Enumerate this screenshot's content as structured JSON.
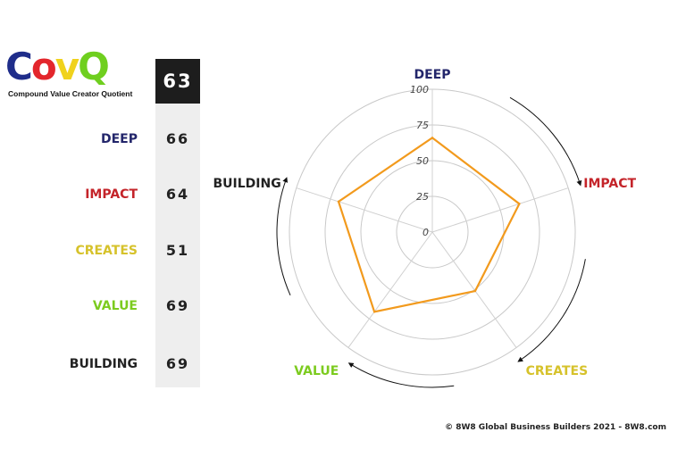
{
  "logo": {
    "letters": [
      {
        "char": "C",
        "color": "#1f2d8a"
      },
      {
        "char": "o",
        "color": "#e3262c"
      },
      {
        "char": "v",
        "color": "#f0d21c"
      },
      {
        "char": "Q",
        "color": "#6fcf1f"
      }
    ],
    "subtitle": "Compound Value Creator Quotient"
  },
  "total_score": "63",
  "rows": [
    {
      "label": "DEEP",
      "score": "66",
      "color": "#23266b"
    },
    {
      "label": "IMPACT",
      "score": "64",
      "color": "#c4242a"
    },
    {
      "label": "CREATES",
      "score": "51",
      "color": "#d6c22b"
    },
    {
      "label": "VALUE",
      "score": "69",
      "color": "#7ccb1f"
    },
    {
      "label": "BUILDING",
      "score": "69",
      "color": "#222222"
    }
  ],
  "chart_data": {
    "type": "radar",
    "axes": [
      "DEEP",
      "IMPACT",
      "CREATES",
      "VALUE",
      "BUILDING"
    ],
    "axis_colors": [
      "#23266b",
      "#c4242a",
      "#d6c22b",
      "#7ccb1f",
      "#222222"
    ],
    "series": [
      {
        "values": [
          66,
          64,
          51,
          69,
          69
        ],
        "color": "#f29a1d"
      }
    ],
    "range": [
      0,
      100
    ],
    "ticks": [
      "0",
      "25",
      "50",
      "75",
      "100"
    ],
    "tick_values": [
      0,
      25,
      50,
      75,
      100
    ],
    "grid": true
  },
  "copyright": "© 8W8 Global Business Builders 2021 - 8W8.com"
}
